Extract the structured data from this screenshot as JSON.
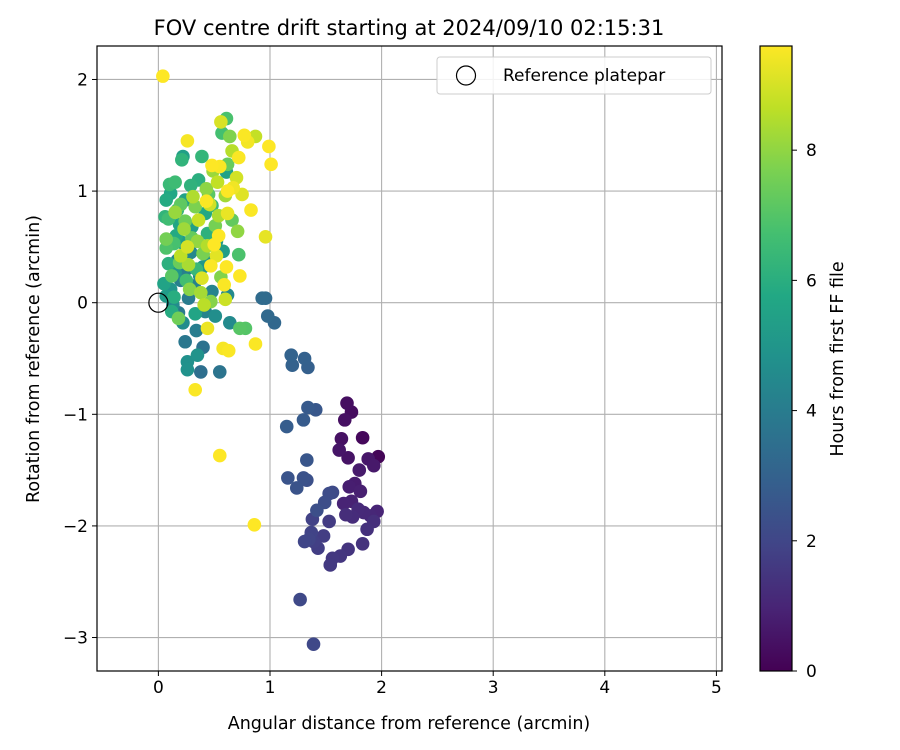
{
  "chart_data": {
    "type": "scatter",
    "title": "FOV centre drift starting at 2024/09/10 02:15:31",
    "xlabel": "Angular distance from reference (arcmin)",
    "ylabel": "Rotation from reference (arcmin)",
    "xlim": [
      -0.55,
      5.05
    ],
    "ylim": [
      -3.3,
      2.3
    ],
    "xticks": [
      0,
      1,
      2,
      3,
      4,
      5
    ],
    "yticks": [
      -3,
      -2,
      -1,
      0,
      1,
      2
    ],
    "grid": true,
    "legend": {
      "position": "top-right",
      "entries": [
        "Reference platepar"
      ]
    },
    "reference_point": {
      "x": 0,
      "y": 0,
      "label": "Reference platepar"
    },
    "colorbar": {
      "label": "Hours from first FF file",
      "range": [
        0,
        9.6
      ],
      "ticks": [
        0,
        2,
        4,
        6,
        8
      ],
      "colormap": "viridis"
    },
    "points": [
      {
        "x": 1.97,
        "y": -1.38,
        "h": 0.1
      },
      {
        "x": 1.83,
        "y": -1.21,
        "h": 0.2
      },
      {
        "x": 1.73,
        "y": -0.98,
        "h": 0.3
      },
      {
        "x": 1.69,
        "y": -0.9,
        "h": 0.35
      },
      {
        "x": 1.67,
        "y": -1.05,
        "h": 0.4
      },
      {
        "x": 1.64,
        "y": -1.22,
        "h": 0.45
      },
      {
        "x": 1.7,
        "y": -1.39,
        "h": 0.5
      },
      {
        "x": 1.62,
        "y": -1.32,
        "h": 0.55
      },
      {
        "x": 1.88,
        "y": -1.4,
        "h": 0.6
      },
      {
        "x": 1.93,
        "y": -1.46,
        "h": 0.65
      },
      {
        "x": 1.8,
        "y": -1.5,
        "h": 0.7
      },
      {
        "x": 1.76,
        "y": -1.62,
        "h": 0.75
      },
      {
        "x": 1.71,
        "y": -1.65,
        "h": 0.8
      },
      {
        "x": 1.81,
        "y": -1.69,
        "h": 0.85
      },
      {
        "x": 1.73,
        "y": -1.78,
        "h": 0.9
      },
      {
        "x": 1.66,
        "y": -1.8,
        "h": 0.95
      },
      {
        "x": 1.96,
        "y": -1.87,
        "h": 1.0
      },
      {
        "x": 1.9,
        "y": -1.91,
        "h": 1.05
      },
      {
        "x": 1.84,
        "y": -1.88,
        "h": 1.1
      },
      {
        "x": 1.79,
        "y": -1.85,
        "h": 1.15
      },
      {
        "x": 1.74,
        "y": -1.92,
        "h": 1.2
      },
      {
        "x": 1.68,
        "y": -1.9,
        "h": 1.25
      },
      {
        "x": 1.93,
        "y": -1.96,
        "h": 1.3
      },
      {
        "x": 1.87,
        "y": -2.03,
        "h": 1.35
      },
      {
        "x": 1.83,
        "y": -2.16,
        "h": 1.4
      },
      {
        "x": 1.7,
        "y": -2.21,
        "h": 1.45
      },
      {
        "x": 1.63,
        "y": -2.27,
        "h": 1.5
      },
      {
        "x": 1.56,
        "y": -2.29,
        "h": 1.55
      },
      {
        "x": 1.54,
        "y": -2.35,
        "h": 1.6
      },
      {
        "x": 1.53,
        "y": -1.96,
        "h": 1.65
      },
      {
        "x": 1.48,
        "y": -2.09,
        "h": 1.7
      },
      {
        "x": 1.43,
        "y": -2.2,
        "h": 1.75
      },
      {
        "x": 1.39,
        "y": -2.14,
        "h": 1.8
      },
      {
        "x": 1.38,
        "y": -1.94,
        "h": 1.85
      },
      {
        "x": 1.37,
        "y": -2.06,
        "h": 1.9
      },
      {
        "x": 1.35,
        "y": -2.12,
        "h": 1.95
      },
      {
        "x": 1.31,
        "y": -2.14,
        "h": 2.0
      },
      {
        "x": 1.39,
        "y": -3.06,
        "h": 2.05
      },
      {
        "x": 1.27,
        "y": -2.66,
        "h": 2.1
      },
      {
        "x": 1.56,
        "y": -1.7,
        "h": 2.15
      },
      {
        "x": 1.53,
        "y": -1.71,
        "h": 2.2
      },
      {
        "x": 1.49,
        "y": -1.79,
        "h": 2.25
      },
      {
        "x": 1.42,
        "y": -1.86,
        "h": 2.3
      },
      {
        "x": 1.33,
        "y": -1.59,
        "h": 2.35
      },
      {
        "x": 1.3,
        "y": -1.57,
        "h": 2.4
      },
      {
        "x": 1.24,
        "y": -1.66,
        "h": 2.45
      },
      {
        "x": 1.16,
        "y": -1.57,
        "h": 2.5
      },
      {
        "x": 1.33,
        "y": -1.41,
        "h": 2.55
      },
      {
        "x": 1.41,
        "y": -0.96,
        "h": 2.6
      },
      {
        "x": 1.34,
        "y": -0.94,
        "h": 2.7
      },
      {
        "x": 1.3,
        "y": -1.05,
        "h": 2.75
      },
      {
        "x": 1.15,
        "y": -1.11,
        "h": 2.8
      },
      {
        "x": 1.34,
        "y": -0.58,
        "h": 2.9
      },
      {
        "x": 1.31,
        "y": -0.5,
        "h": 2.95
      },
      {
        "x": 1.2,
        "y": -0.56,
        "h": 3.0
      },
      {
        "x": 1.19,
        "y": -0.47,
        "h": 3.05
      },
      {
        "x": 1.04,
        "y": -0.18,
        "h": 3.2
      },
      {
        "x": 0.98,
        "y": -0.12,
        "h": 3.25
      },
      {
        "x": 0.96,
        "y": 0.04,
        "h": 3.3
      },
      {
        "x": 0.93,
        "y": 0.04,
        "h": 3.35
      },
      {
        "x": 0.38,
        "y": -0.62,
        "h": 3.5
      },
      {
        "x": 0.4,
        "y": -0.4,
        "h": 3.6
      },
      {
        "x": 0.55,
        "y": -0.62,
        "h": 3.7
      },
      {
        "x": 0.24,
        "y": -0.35,
        "h": 3.8
      },
      {
        "x": 0.18,
        "y": -0.09,
        "h": 3.9
      },
      {
        "x": 0.27,
        "y": 0.04,
        "h": 4.0
      },
      {
        "x": 0.34,
        "y": -0.25,
        "h": 4.05
      },
      {
        "x": 0.2,
        "y": 0.2,
        "h": 4.1
      },
      {
        "x": 0.25,
        "y": 0.3,
        "h": 4.15
      },
      {
        "x": 0.32,
        "y": 0.15,
        "h": 4.2
      },
      {
        "x": 0.42,
        "y": -0.08,
        "h": 4.25
      },
      {
        "x": 0.48,
        "y": 0.1,
        "h": 4.3
      },
      {
        "x": 0.17,
        "y": 0.38,
        "h": 4.35
      },
      {
        "x": 0.29,
        "y": 0.45,
        "h": 4.4
      },
      {
        "x": 0.37,
        "y": 0.24,
        "h": 4.45
      },
      {
        "x": 0.62,
        "y": 0.07,
        "h": 4.5
      },
      {
        "x": 0.64,
        "y": -0.18,
        "h": 4.55
      },
      {
        "x": 0.13,
        "y": -0.02,
        "h": 4.6
      },
      {
        "x": 0.22,
        "y": -0.18,
        "h": 4.65
      },
      {
        "x": 0.51,
        "y": -0.12,
        "h": 4.7
      },
      {
        "x": 0.26,
        "y": -0.53,
        "h": 4.8
      },
      {
        "x": 0.26,
        "y": -0.6,
        "h": 4.85
      },
      {
        "x": 0.35,
        "y": -0.47,
        "h": 4.9
      },
      {
        "x": 0.11,
        "y": 0.12,
        "h": 4.95
      },
      {
        "x": 0.15,
        "y": 0.27,
        "h": 5.0
      },
      {
        "x": 0.4,
        "y": 0.32,
        "h": 5.05
      },
      {
        "x": 0.46,
        "y": 0.38,
        "h": 5.1
      },
      {
        "x": 0.52,
        "y": 0.55,
        "h": 5.15
      },
      {
        "x": 0.07,
        "y": 0.06,
        "h": 5.2
      },
      {
        "x": 0.21,
        "y": 0.54,
        "h": 5.25
      },
      {
        "x": 0.58,
        "y": 0.46,
        "h": 5.3
      },
      {
        "x": 0.3,
        "y": 0.68,
        "h": 5.35
      },
      {
        "x": 0.22,
        "y": 1.31,
        "h": 5.4
      },
      {
        "x": 0.24,
        "y": 0.92,
        "h": 5.45
      },
      {
        "x": 0.61,
        "y": 1.17,
        "h": 5.5
      },
      {
        "x": 0.05,
        "y": 0.17,
        "h": 5.55
      },
      {
        "x": 0.33,
        "y": -0.1,
        "h": 5.6
      },
      {
        "x": 0.19,
        "y": 0.7,
        "h": 5.65
      },
      {
        "x": 0.11,
        "y": 0.98,
        "h": 5.7
      },
      {
        "x": 0.42,
        "y": 0.8,
        "h": 5.75
      },
      {
        "x": 0.16,
        "y": 0.6,
        "h": 5.8
      },
      {
        "x": 0.07,
        "y": 0.92,
        "h": 5.85
      },
      {
        "x": 0.12,
        "y": -0.08,
        "h": 5.9
      },
      {
        "x": 0.14,
        "y": 0.05,
        "h": 5.95
      },
      {
        "x": 0.36,
        "y": 1.1,
        "h": 6.0
      },
      {
        "x": 0.09,
        "y": 0.35,
        "h": 6.05
      },
      {
        "x": 0.44,
        "y": 0.62,
        "h": 6.1
      },
      {
        "x": 0.29,
        "y": 1.05,
        "h": 6.15
      },
      {
        "x": 0.21,
        "y": 1.28,
        "h": 6.2
      },
      {
        "x": 0.06,
        "y": 0.77,
        "h": 6.25
      },
      {
        "x": 0.39,
        "y": 1.31,
        "h": 6.3
      },
      {
        "x": 0.17,
        "y": 0.83,
        "h": 6.35
      },
      {
        "x": 0.34,
        "y": 0.3,
        "h": 6.4
      },
      {
        "x": 0.1,
        "y": 1.06,
        "h": 6.45
      },
      {
        "x": 0.48,
        "y": 0.87,
        "h": 6.5
      },
      {
        "x": 0.15,
        "y": 1.08,
        "h": 6.55
      },
      {
        "x": 0.09,
        "y": 0.75,
        "h": 6.6
      },
      {
        "x": 0.25,
        "y": 0.2,
        "h": 6.65
      },
      {
        "x": 0.57,
        "y": 1.52,
        "h": 6.7
      },
      {
        "x": 0.14,
        "y": 0.53,
        "h": 6.75
      },
      {
        "x": 0.61,
        "y": 1.65,
        "h": 6.8
      },
      {
        "x": 0.72,
        "y": 0.43,
        "h": 6.85
      },
      {
        "x": 0.07,
        "y": 0.49,
        "h": 6.9
      },
      {
        "x": 0.78,
        "y": -0.23,
        "h": 7.0
      },
      {
        "x": 0.73,
        "y": -0.23,
        "h": 7.05
      },
      {
        "x": 0.12,
        "y": 0.24,
        "h": 7.1
      },
      {
        "x": 0.45,
        "y": 0.97,
        "h": 7.15
      },
      {
        "x": 0.2,
        "y": 0.88,
        "h": 7.2
      },
      {
        "x": 0.66,
        "y": 0.74,
        "h": 7.25
      },
      {
        "x": 0.3,
        "y": 0.58,
        "h": 7.3
      },
      {
        "x": 0.62,
        "y": 1.24,
        "h": 7.35
      },
      {
        "x": 0.19,
        "y": 0.36,
        "h": 7.4
      },
      {
        "x": 0.24,
        "y": 0.73,
        "h": 7.45
      },
      {
        "x": 0.18,
        "y": -0.14,
        "h": 7.5
      },
      {
        "x": 0.07,
        "y": 0.57,
        "h": 7.55
      },
      {
        "x": 0.51,
        "y": 0.69,
        "h": 7.6
      },
      {
        "x": 0.4,
        "y": 0.44,
        "h": 7.65
      },
      {
        "x": 0.33,
        "y": 0.86,
        "h": 7.7
      },
      {
        "x": 0.64,
        "y": 1.49,
        "h": 7.75
      },
      {
        "x": 0.56,
        "y": 0.23,
        "h": 7.8
      },
      {
        "x": 0.47,
        "y": 0.01,
        "h": 7.85
      },
      {
        "x": 0.28,
        "y": 0.12,
        "h": 7.9
      },
      {
        "x": 0.43,
        "y": 1.02,
        "h": 7.95
      },
      {
        "x": 0.71,
        "y": 0.64,
        "h": 8.0
      },
      {
        "x": 0.35,
        "y": 0.55,
        "h": 8.05
      },
      {
        "x": 0.15,
        "y": 0.81,
        "h": 8.1
      },
      {
        "x": 0.49,
        "y": 1.18,
        "h": 8.15
      },
      {
        "x": 0.23,
        "y": 0.66,
        "h": 8.2
      },
      {
        "x": 0.6,
        "y": 0.96,
        "h": 8.25
      },
      {
        "x": 0.38,
        "y": 0.09,
        "h": 8.3
      },
      {
        "x": 0.27,
        "y": 0.34,
        "h": 8.35
      },
      {
        "x": 0.54,
        "y": 0.78,
        "h": 8.4
      },
      {
        "x": 0.31,
        "y": 0.95,
        "h": 8.45
      },
      {
        "x": 0.44,
        "y": 0.51,
        "h": 8.5
      },
      {
        "x": 0.66,
        "y": 1.36,
        "h": 8.55
      },
      {
        "x": 0.41,
        "y": -0.02,
        "h": 8.6
      },
      {
        "x": 0.2,
        "y": 0.42,
        "h": 8.65
      },
      {
        "x": 0.53,
        "y": 1.08,
        "h": 8.7
      },
      {
        "x": 0.87,
        "y": 1.49,
        "h": 8.75
      },
      {
        "x": 0.36,
        "y": 0.74,
        "h": 8.8
      },
      {
        "x": 0.6,
        "y": 0.03,
        "h": 8.85
      },
      {
        "x": 0.46,
        "y": 0.88,
        "h": 8.9
      },
      {
        "x": 0.7,
        "y": 1.12,
        "h": 8.95
      },
      {
        "x": 0.26,
        "y": 0.5,
        "h": 9.0
      },
      {
        "x": 0.56,
        "y": 1.62,
        "h": 9.05
      },
      {
        "x": 0.39,
        "y": 0.22,
        "h": 9.1
      },
      {
        "x": 0.75,
        "y": 0.97,
        "h": 9.15
      },
      {
        "x": 0.52,
        "y": 0.42,
        "h": 9.2
      },
      {
        "x": 0.96,
        "y": 0.59,
        "h": 9.25
      },
      {
        "x": 0.62,
        "y": 0.8,
        "h": 9.3
      },
      {
        "x": 0.44,
        "y": -0.23,
        "h": 9.35
      },
      {
        "x": 0.67,
        "y": 1.03,
        "h": 9.4
      },
      {
        "x": 0.8,
        "y": 1.44,
        "h": 9.45
      },
      {
        "x": 0.58,
        "y": -0.41,
        "h": 9.5
      },
      {
        "x": 0.87,
        "y": -0.37,
        "h": 9.55
      },
      {
        "x": 0.63,
        "y": -0.43,
        "h": 9.55
      },
      {
        "x": 0.33,
        "y": -0.78,
        "h": 9.55
      },
      {
        "x": 0.55,
        "y": -1.37,
        "h": 9.6
      },
      {
        "x": 0.86,
        "y": -1.99,
        "h": 9.6
      },
      {
        "x": 0.04,
        "y": 2.03,
        "h": 9.6
      },
      {
        "x": 0.99,
        "y": 1.4,
        "h": 9.6
      },
      {
        "x": 1.01,
        "y": 1.24,
        "h": 9.6
      },
      {
        "x": 0.77,
        "y": 1.5,
        "h": 9.55
      },
      {
        "x": 0.26,
        "y": 1.45,
        "h": 9.5
      },
      {
        "x": 0.55,
        "y": 1.22,
        "h": 9.55
      },
      {
        "x": 0.72,
        "y": 1.3,
        "h": 9.55
      },
      {
        "x": 0.48,
        "y": 1.23,
        "h": 9.6
      },
      {
        "x": 0.62,
        "y": 1.0,
        "h": 9.6
      },
      {
        "x": 0.83,
        "y": 0.83,
        "h": 9.55
      },
      {
        "x": 0.54,
        "y": 0.6,
        "h": 9.6
      },
      {
        "x": 0.73,
        "y": 0.24,
        "h": 9.6
      },
      {
        "x": 0.47,
        "y": 0.33,
        "h": 9.55
      },
      {
        "x": 0.61,
        "y": 0.32,
        "h": 9.6
      },
      {
        "x": 0.59,
        "y": 0.16,
        "h": 9.55
      },
      {
        "x": 0.43,
        "y": 0.91,
        "h": 9.55
      },
      {
        "x": 0.5,
        "y": 0.52,
        "h": 9.6
      }
    ]
  }
}
